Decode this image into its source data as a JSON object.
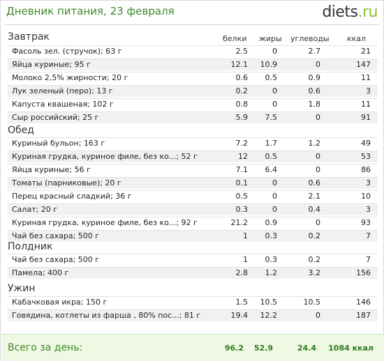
{
  "header": {
    "title": "Дневник питания, 23 февраля",
    "logo_main": "diets",
    "logo_tld": ".ru"
  },
  "columns": {
    "protein": "белки",
    "fat": "жиры",
    "carbs": "углеводы",
    "kcal": "ккал"
  },
  "meals": {
    "breakfast": {
      "label": "Завтрак",
      "items": [
        {
          "name": "Фасоль зел. (стручок); 63 г",
          "protein": "2.5",
          "fat": "0",
          "carbs": "2.7",
          "kcal": "21"
        },
        {
          "name": "Яйца куриные; 95 г",
          "protein": "12.1",
          "fat": "10.9",
          "carbs": "0",
          "kcal": "147"
        },
        {
          "name": "Молоко 2,5% жирности; 20 г",
          "protein": "0.6",
          "fat": "0.5",
          "carbs": "0.9",
          "kcal": "11"
        },
        {
          "name": "Лук зеленый (перо); 13 г",
          "protein": "0.2",
          "fat": "0",
          "carbs": "0.6",
          "kcal": "3"
        },
        {
          "name": "Капуста квашеная; 102 г",
          "protein": "0.8",
          "fat": "0",
          "carbs": "1.8",
          "kcal": "11"
        },
        {
          "name": "Сыр российский; 25 г",
          "protein": "5.9",
          "fat": "7.5",
          "carbs": "0",
          "kcal": "91"
        }
      ]
    },
    "lunch": {
      "label": "Обед",
      "items": [
        {
          "name": "Куриный бульон; 163 г",
          "protein": "7.2",
          "fat": "1.7",
          "carbs": "1.2",
          "kcal": "49"
        },
        {
          "name": "Куриная грудка, куриное филе, без ко...; 52 г",
          "protein": "12",
          "fat": "0.5",
          "carbs": "0",
          "kcal": "53"
        },
        {
          "name": "Яйца куриные; 56 г",
          "protein": "7.1",
          "fat": "6.4",
          "carbs": "0",
          "kcal": "86"
        },
        {
          "name": "Томаты (парниковые); 20 г",
          "protein": "0.1",
          "fat": "0",
          "carbs": "0.6",
          "kcal": "3"
        },
        {
          "name": "Перец красный сладкий; 36 г",
          "protein": "0.5",
          "fat": "0",
          "carbs": "2.1",
          "kcal": "10"
        },
        {
          "name": "Салат; 20 г",
          "protein": "0.3",
          "fat": "0",
          "carbs": "0.4",
          "kcal": "3"
        },
        {
          "name": "Куриная грудка, куриное филе, без ко...; 92 г",
          "protein": "21.2",
          "fat": "0.9",
          "carbs": "0",
          "kcal": "93"
        },
        {
          "name": "Чай без сахара; 500 г",
          "protein": "1",
          "fat": "0.3",
          "carbs": "0.2",
          "kcal": "7"
        }
      ]
    },
    "snack": {
      "label": "Полдник",
      "items": [
        {
          "name": "Чай без сахара; 500 г",
          "protein": "1",
          "fat": "0.3",
          "carbs": "0.2",
          "kcal": "7"
        },
        {
          "name": "Памела; 400 г",
          "protein": "2.8",
          "fat": "1.2",
          "carbs": "3.2",
          "kcal": "156"
        }
      ]
    },
    "dinner": {
      "label": "Ужин",
      "items": [
        {
          "name": "Кабачковая икра; 150 г",
          "protein": "1.5",
          "fat": "10.5",
          "carbs": "10.5",
          "kcal": "146"
        },
        {
          "name": "Говядина, котлеты из фарша , 80% пос...; 81 г",
          "protein": "19.4",
          "fat": "12.2",
          "carbs": "0",
          "kcal": "187"
        }
      ]
    }
  },
  "totals": {
    "label": "Всего за день:",
    "protein": "96.2",
    "fat": "52.9",
    "carbs": "24.4",
    "kcal": "1084 ккал"
  },
  "colors": {
    "accent_green": "#3f8a2a",
    "logo_tld": "#8fbf3a",
    "total_bg": "#eef8e3"
  }
}
